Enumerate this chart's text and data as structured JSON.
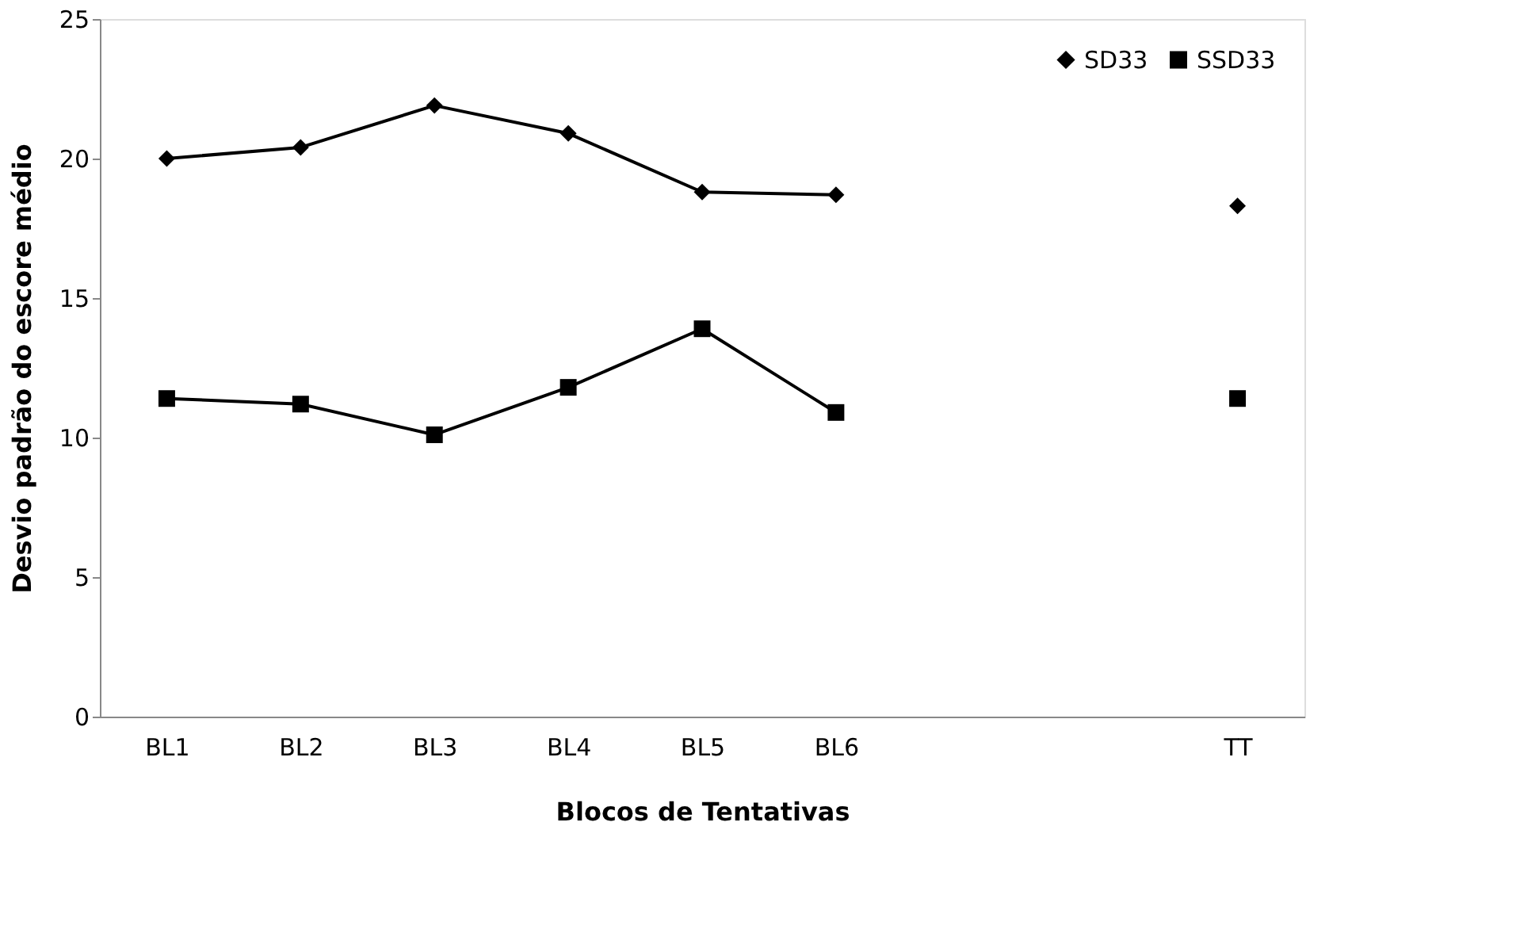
{
  "chart_data": {
    "type": "line",
    "xlabel": "Blocos de Tentativas",
    "ylabel": "Desvio padrão do escore médio",
    "categories": [
      "BL1",
      "BL2",
      "BL3",
      "BL4",
      "BL5",
      "BL6",
      null,
      null,
      "TT"
    ],
    "series": [
      {
        "name": "SD33",
        "color": "#000000",
        "marker": "diamond",
        "values": [
          20.0,
          20.4,
          21.9,
          20.9,
          18.8,
          18.7,
          null,
          null,
          18.3
        ]
      },
      {
        "name": "SSD33",
        "color": "#000000",
        "marker": "square",
        "values": [
          11.4,
          11.2,
          10.1,
          11.8,
          13.9,
          10.9,
          null,
          null,
          11.4
        ]
      }
    ],
    "ylim": [
      0,
      25
    ],
    "yticks": [
      0,
      5,
      10,
      15,
      20,
      25
    ],
    "grid": false,
    "legend": "top right"
  }
}
